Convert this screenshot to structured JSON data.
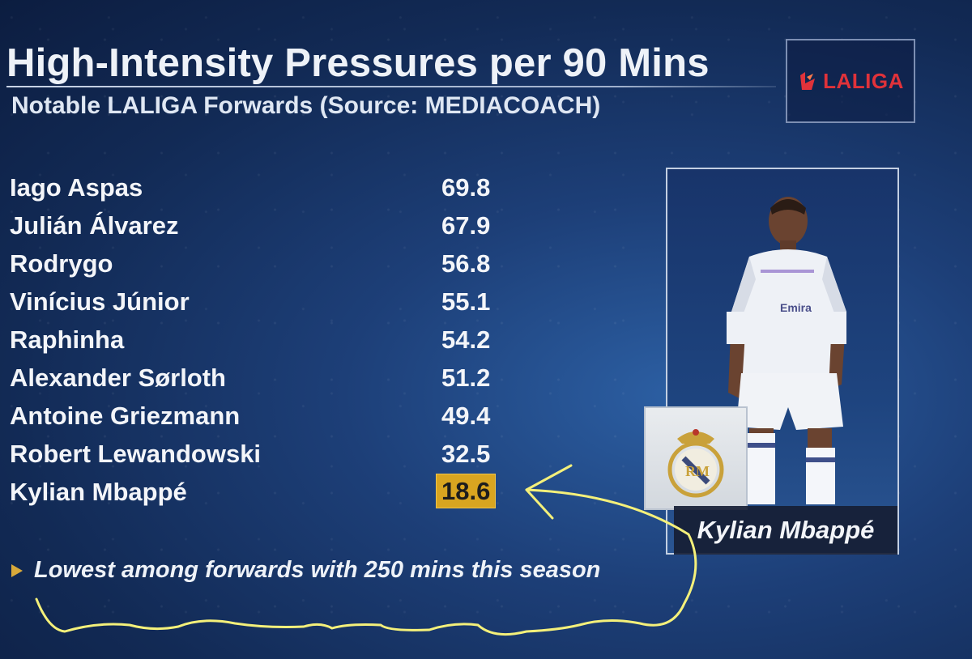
{
  "header": {
    "title": "High-Intensity Pressures per 90 Mins",
    "subtitle": "Notable LALIGA Forwards (Source: MEDIACOACH)",
    "logo_text": "LALIGA"
  },
  "players": [
    {
      "name": "Iago Aspas",
      "value": "69.8"
    },
    {
      "name": "Julián Álvarez",
      "value": "67.9"
    },
    {
      "name": "Rodrygo",
      "value": "56.8"
    },
    {
      "name": "Vinícius Júnior",
      "value": "55.1"
    },
    {
      "name": "Raphinha",
      "value": "54.2"
    },
    {
      "name": "Alexander Sørloth",
      "value": "51.2"
    },
    {
      "name": "Antoine Griezmann",
      "value": "49.4"
    },
    {
      "name": "Robert Lewandowski",
      "value": "32.5"
    },
    {
      "name": "Kylian Mbappé",
      "value": "18.6",
      "highlighted": true
    }
  ],
  "note": "Lowest among forwards with 250 mins this season",
  "featured": {
    "name": "Kylian Mbappé",
    "club_badge_icon": "real-madrid-crest-icon"
  },
  "colors": {
    "background": "#1d3f78",
    "highlight": "#d9a520",
    "logo_red": "#e0323a",
    "annotation": "#f4f07a"
  }
}
